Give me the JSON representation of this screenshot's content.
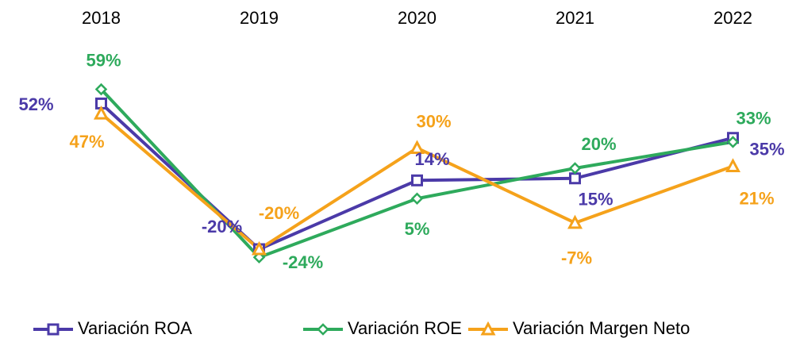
{
  "chart_data": {
    "type": "line",
    "categories": [
      "2018",
      "2019",
      "2020",
      "2021",
      "2022"
    ],
    "ylim": [
      -40,
      80
    ],
    "series": [
      {
        "name": "Variación ROA",
        "color": "#4b3aa8",
        "marker": "square",
        "values": [
          52,
          -20,
          14,
          15,
          35
        ],
        "value_labels": [
          "52%",
          "-20%",
          "14%",
          "15%",
          "35%"
        ]
      },
      {
        "name": "Variación ROE",
        "color": "#2eaa5c",
        "marker": "diamond",
        "values": [
          59,
          -24,
          5,
          20,
          33
        ],
        "value_labels": [
          "59%",
          "-24%",
          "5%",
          "20%",
          "33%"
        ]
      },
      {
        "name": "Variación Margen Neto",
        "color": "#f5a21b",
        "marker": "triangle",
        "values": [
          47,
          -20,
          30,
          -7,
          21
        ],
        "value_labels": [
          "47%",
          "-20%",
          "30%",
          "-7%",
          "21%"
        ]
      }
    ],
    "legend": "bottom"
  }
}
